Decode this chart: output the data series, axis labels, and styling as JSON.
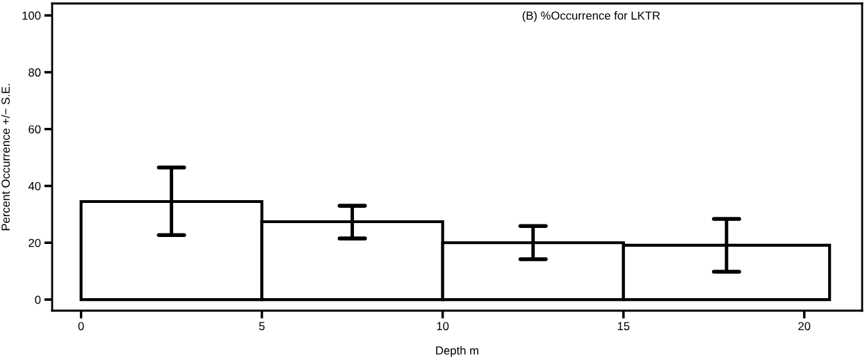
{
  "chart_data": {
    "type": "histogram",
    "title": "(B) %Occurrence for LKTR",
    "xlabel": "Depth m",
    "ylabel": "Percent Occurrence +/− S.E.",
    "bins": [
      0,
      5,
      10,
      15,
      20.7
    ],
    "values": [
      34.5,
      27.4,
      20.0,
      19.1
    ],
    "errors": [
      [
        22.7,
        46.5
      ],
      [
        21.5,
        33.0
      ],
      [
        14.2,
        25.9
      ],
      [
        9.8,
        28.4
      ]
    ],
    "color": "#ffffff",
    "xlim": [
      -0.8,
      21.6
    ],
    "ylim": [
      -3.9,
      104.2
    ],
    "xticks": [
      0,
      5,
      10,
      15,
      20
    ],
    "yticks": [
      0,
      20,
      40,
      60,
      80,
      100
    ],
    "grid": false,
    "legend": false
  }
}
